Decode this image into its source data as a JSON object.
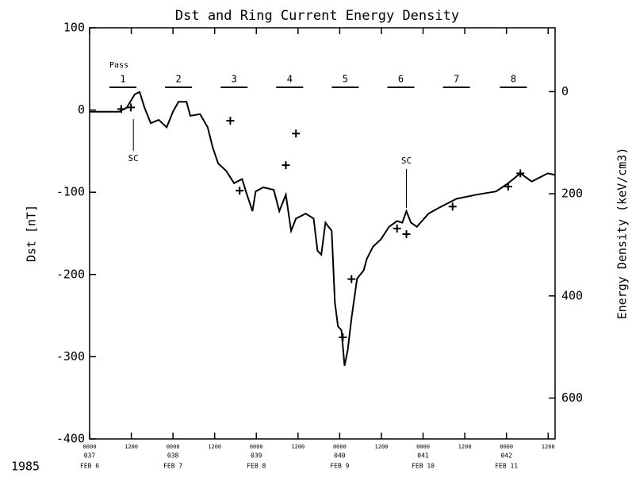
{
  "chart_data": {
    "type": "line",
    "title": "Dst and Ring Current Energy Density",
    "ylabel": "Dst  [nT]",
    "y2label": "Energy Density  (keV/cm3)",
    "year_label": "1985",
    "pass_label": "Pass",
    "xlim": [
      0,
      134
    ],
    "ylim": [
      -400,
      100
    ],
    "yticks": [
      -400,
      -300,
      -200,
      -100,
      0,
      100
    ],
    "y2lim": [
      -125,
      680
    ],
    "y2_inverted": true,
    "y2ticks": [
      0,
      200,
      400,
      600
    ],
    "xticks": [
      {
        "value": 0,
        "label": "0000"
      },
      {
        "value": 12,
        "label": "1200"
      },
      {
        "value": 24,
        "label": "0000"
      },
      {
        "value": 36,
        "label": "1200"
      },
      {
        "value": 48,
        "label": "0000"
      },
      {
        "value": 60,
        "label": "1200"
      },
      {
        "value": 72,
        "label": "0000"
      },
      {
        "value": 84,
        "label": "1200"
      },
      {
        "value": 96,
        "label": "0000"
      },
      {
        "value": 108,
        "label": "1200"
      },
      {
        "value": 120,
        "label": "0000"
      },
      {
        "value": 132,
        "label": "1200"
      }
    ],
    "day_labels": [
      {
        "value": 0,
        "day": "037",
        "date": "FEB  6"
      },
      {
        "value": 24,
        "day": "038",
        "date": "FEB  7"
      },
      {
        "value": 48,
        "day": "039",
        "date": "FEB  8"
      },
      {
        "value": 72,
        "day": "040",
        "date": "FEB  9"
      },
      {
        "value": 96,
        "day": "041",
        "date": "FEB 10"
      },
      {
        "value": 120,
        "day": "042",
        "date": "FEB 11"
      }
    ],
    "passes": [
      {
        "label": "1",
        "x": 9.6
      },
      {
        "label": "2",
        "x": 25.6
      },
      {
        "label": "3",
        "x": 41.6
      },
      {
        "label": "4",
        "x": 57.6
      },
      {
        "label": "5",
        "x": 73.6
      },
      {
        "label": "6",
        "x": 89.6
      },
      {
        "label": "7",
        "x": 105.6
      },
      {
        "label": "8",
        "x": 122
      }
    ],
    "annotations": [
      {
        "text": "SC",
        "x": 12.6,
        "position": "below"
      },
      {
        "text": "SC",
        "x": 91.2,
        "position": "above"
      }
    ],
    "series": [
      {
        "name": "Dst",
        "color": "#000000",
        "axis": "y",
        "x": [
          0,
          8.5,
          10.7,
          13,
          14.4,
          15.8,
          17.6,
          19.9,
          22.2,
          24,
          25.6,
          27.9,
          29,
          31.8,
          34,
          35.4,
          37,
          39.3,
          41.6,
          43.9,
          45,
          46.9,
          47.8,
          50,
          53,
          54.6,
          56.5,
          58,
          59.4,
          62.2,
          64.5,
          65.6,
          66.7,
          67.9,
          69.7,
          70.6,
          71.5,
          72.5,
          73.4,
          74.3,
          75.4,
          77,
          78.9,
          79.8,
          81.6,
          83.9,
          86.2,
          88.5,
          90,
          91.2,
          92.5,
          94.2,
          97.6,
          101,
          105.6,
          111.3,
          117,
          120.5,
          124,
          127.3,
          131.9,
          134
        ],
        "values": [
          -2,
          -2,
          3,
          19,
          22,
          3,
          -16,
          -12,
          -21,
          -2,
          10,
          10,
          -7,
          -5,
          -21,
          -45,
          -65,
          -74,
          -89,
          -84,
          -99,
          -123,
          -99,
          -94,
          -97,
          -123,
          -103,
          -147,
          -132,
          -126,
          -132,
          -171,
          -176,
          -137,
          -147,
          -234,
          -263,
          -268,
          -311,
          -292,
          -253,
          -205,
          -195,
          -181,
          -166,
          -157,
          -142,
          -135,
          -137,
          -123,
          -137,
          -142,
          -126,
          -118,
          -108,
          -103,
          -99,
          -89,
          -77,
          -87,
          -77,
          -79
        ]
      },
      {
        "name": "Energy Density",
        "color": "#000000",
        "axis": "y2",
        "marker": "+",
        "x": [
          9.1,
          11.9,
          40.5,
          43.2,
          56.5,
          59.4,
          72.9,
          75.4,
          88.5,
          91.2,
          104.5,
          120.5,
          124
        ],
        "values": [
          34,
          31,
          57,
          194,
          144,
          82,
          481,
          367,
          268,
          279,
          225,
          186,
          160
        ]
      }
    ]
  }
}
